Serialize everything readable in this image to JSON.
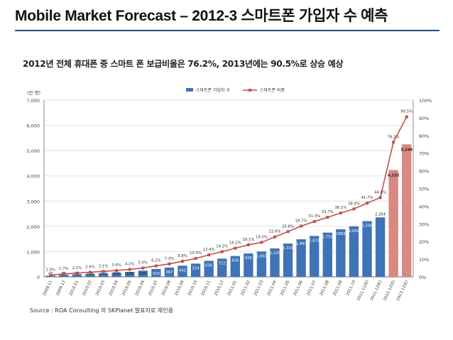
{
  "page": {
    "title": "Mobile Market Forecast – 2012-3  스마트폰 가입자 수 예측",
    "headline": "2012년 전체 휴대폰 중 스마트 폰 보급비율은 76.2%, 2013년에는 90.5%로 상승 예상",
    "source": "Source : ROA Consulting 의 SKPlanet 발표자료 재인용"
  },
  "chart_data": {
    "type": "bar",
    "title": "2012년 전체 휴대폰 중 스마트 폰 보급비율은 76.2%, 2013년에는 90.5%로 상승 예상",
    "unit_label": "(만 명)",
    "ylim": [
      0,
      7000
    ],
    "y_ticks": [
      0,
      1000,
      2000,
      3000,
      4000,
      5000,
      6000,
      7000
    ],
    "y_tick_labels": [
      "0",
      "1,000",
      "2,000",
      "3,000",
      "4,000",
      "5,000",
      "6,000",
      "7,000"
    ],
    "y2lim": [
      0,
      100
    ],
    "y2_tick_labels": [
      "0%",
      "10%",
      "20%",
      "30%",
      "40%",
      "50%",
      "60%",
      "70%",
      "80%",
      "90%",
      "100%"
    ],
    "legend": {
      "position": "top",
      "bar_label": "스마트폰 가입자 수",
      "line_label": "스마트폰 비중"
    },
    "colors": {
      "actual_bar": "#3f73b7",
      "forecast_bar": "#d98882",
      "line": "#c0504d",
      "grid": "#e2e2e2"
    },
    "categories": [
      "2009.11",
      "2009.12",
      "2010.01",
      "2010.02",
      "2010.03",
      "2010.04",
      "2010.05",
      "2010.06",
      "2010.07",
      "2010.08",
      "2010.09",
      "2010.10",
      "2010.11",
      "2010.12",
      "2011.01",
      "2011.02",
      "2011.03",
      "2011.04",
      "2011.05",
      "2011.06",
      "2011.07",
      "2011.08",
      "2011.09",
      "2011.10",
      "2011.11(E)",
      "2011.12(E)",
      "2012.12(E)",
      "2013.12(E)"
    ],
    "series": [
      {
        "name": "스마트폰 가입자 수",
        "kind": "bar",
        "values": [
          47,
          80,
          99,
          116,
          141,
          166,
          196,
          244,
          310,
          367,
          442,
          524,
          636,
          722,
          826,
          926,
          1002,
          1125,
          1319,
          1487,
          1619,
          1751,
          1883,
          2000,
          2206,
          2354,
          4232,
          5249
        ],
        "labels": [
          "47",
          "80",
          "99",
          "116",
          "141",
          "166",
          "196",
          "244",
          "310",
          "367",
          "442",
          "524",
          "636",
          "722",
          "826",
          "926",
          "1,002",
          "1,125",
          "1,319",
          "1,487",
          "1,619",
          "1,751",
          "1883",
          "2,000",
          "2,206",
          "2,354",
          "4,232",
          "5,249"
        ],
        "forecast_from_index": 26
      },
      {
        "name": "스마트폰 비중",
        "kind": "line",
        "axis": "right",
        "values": [
          1.0,
          1.7,
          2.1,
          2.6,
          3.1,
          3.6,
          4.2,
          5.0,
          6.2,
          7.3,
          8.8,
          10.4,
          12.4,
          14.2,
          16.2,
          18.1,
          19.5,
          22.6,
          25.6,
          28.7,
          31.3,
          33.7,
          36.1,
          38.4,
          41.7,
          44.8,
          76.2,
          90.5
        ],
        "labels": [
          "1.0%",
          "1.7%",
          "2.1%",
          "2.6%",
          "3.1%",
          "3.6%",
          "4.2%",
          "5.0%",
          "6.2%",
          "7.3%",
          "8.8%",
          "10.4%",
          "12.4%",
          "14.2%",
          "16.2%",
          "18.1%",
          "19.5%",
          "22.6%",
          "25.6%",
          "28.7%",
          "31.3%",
          "33.7%",
          "36.1%",
          "38.4%",
          "41.7%",
          "44.8%",
          "76.2%",
          "90.5%"
        ]
      }
    ]
  }
}
